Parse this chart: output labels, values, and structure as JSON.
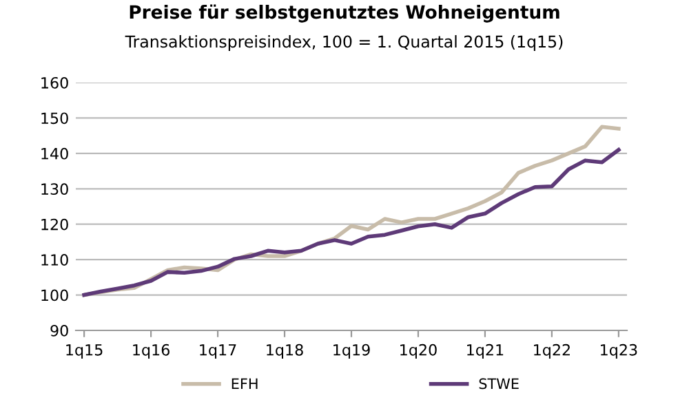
{
  "chart_data": {
    "type": "line",
    "title": "Preise für selbstgenutztes Wohneigentum",
    "subtitle": "Transaktionspreisindex, 100 = 1. Quartal 2015 (1q15)",
    "categories": [
      "1q15",
      null,
      null,
      null,
      "1q16",
      null,
      null,
      null,
      "1q17",
      null,
      null,
      null,
      "1q18",
      null,
      null,
      null,
      "1q19",
      null,
      null,
      null,
      "1q20",
      null,
      null,
      null,
      "1q21",
      null,
      null,
      null,
      "1q22",
      null,
      null,
      null,
      "1q23"
    ],
    "series": [
      {
        "name": "EFH",
        "color": "#c8bca9",
        "values": [
          100,
          100.8,
          101.5,
          102,
          104.5,
          107,
          107.8,
          107.5,
          107,
          110,
          111.5,
          111,
          111,
          112.5,
          114.5,
          116,
          119.5,
          118.5,
          121.5,
          120.5,
          121.5,
          121.5,
          123,
          124.5,
          126.5,
          129,
          134.5,
          136.5,
          138,
          140,
          142,
          147.5,
          147
        ]
      },
      {
        "name": "STWE",
        "color": "#5e3a78",
        "values": [
          100,
          101,
          101.8,
          102.7,
          104,
          106.5,
          106.3,
          106.8,
          108,
          110.2,
          111,
          112.5,
          112,
          112.5,
          114.5,
          115.5,
          114.5,
          116.5,
          117,
          118.2,
          119.4,
          120,
          119,
          122,
          123,
          126,
          128.5,
          130.5,
          130.7,
          135.5,
          138,
          137.5,
          141
        ]
      }
    ],
    "ylim": [
      90,
      160
    ],
    "yticks": [
      90,
      100,
      110,
      120,
      130,
      140,
      150,
      160
    ],
    "grid": "y",
    "legend": "bottom",
    "marker": "none",
    "line_style": "solid"
  }
}
